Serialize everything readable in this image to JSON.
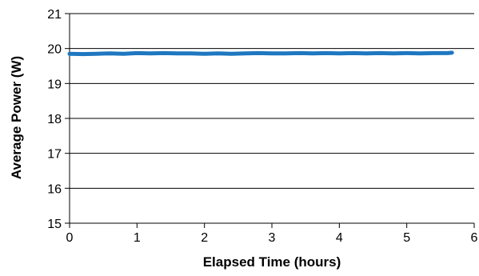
{
  "chart_data": {
    "type": "line",
    "title": "",
    "xlabel": "Elapsed Time (hours)",
    "ylabel": "Average Power (W)",
    "xlim": [
      0,
      6
    ],
    "ylim": [
      15,
      21
    ],
    "x_ticks": [
      0,
      1,
      2,
      3,
      4,
      5,
      6
    ],
    "y_ticks": [
      15,
      16,
      17,
      18,
      19,
      20,
      21
    ],
    "grid": "horizontal",
    "legend": "none",
    "series": [
      {
        "color": "#1f77c0",
        "x": [
          0.0,
          0.2,
          0.4,
          0.6,
          0.8,
          1.0,
          1.2,
          1.4,
          1.6,
          1.8,
          2.0,
          2.2,
          2.4,
          2.6,
          2.8,
          3.0,
          3.2,
          3.4,
          3.6,
          3.8,
          4.0,
          4.2,
          4.4,
          4.6,
          4.8,
          5.0,
          5.2,
          5.4,
          5.6,
          5.67
        ],
        "y": [
          19.85,
          19.84,
          19.85,
          19.86,
          19.85,
          19.87,
          19.86,
          19.87,
          19.86,
          19.86,
          19.85,
          19.86,
          19.85,
          19.86,
          19.87,
          19.86,
          19.86,
          19.87,
          19.86,
          19.87,
          19.86,
          19.87,
          19.86,
          19.87,
          19.86,
          19.87,
          19.86,
          19.87,
          19.87,
          19.88
        ]
      }
    ]
  }
}
